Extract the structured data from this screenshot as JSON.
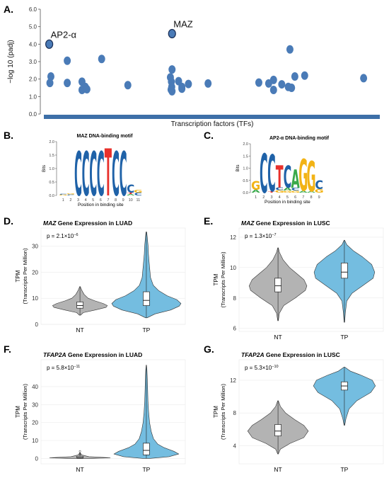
{
  "panels": {
    "A": "A.",
    "B": "B.",
    "C": "C.",
    "D": "D.",
    "E": "E.",
    "F": "F.",
    "G": "G."
  },
  "colors": {
    "scatter_point": "#4a7bb7",
    "baseline_bar": "#3d6fa8",
    "nt_violin": "#b3b3b3",
    "tp_violin": "#74bde0",
    "logo_C": "#1f62a8",
    "logo_T": "#e8302b",
    "logo_A": "#3aa94a",
    "logo_G": "#f2b315"
  },
  "chart_data": [
    {
      "id": "A",
      "type": "scatter",
      "title": "",
      "xlabel": "Transcription factors (TFs)",
      "ylabel": "−log 10 (padj)",
      "ylim": [
        0,
        6
      ],
      "yticks": [
        "0.0",
        "1.0",
        "2.0",
        "3.0",
        "4.0",
        "5.0",
        "6.0"
      ],
      "xlim": [
        0,
        100
      ],
      "annotations": [
        {
          "label": "AP2-α",
          "x": 1,
          "y": 4.0
        },
        {
          "label": "MAZ",
          "x": 38.5,
          "y": 4.6
        }
      ],
      "points": [
        {
          "x": 1,
          "y": 4.0,
          "highlight": true
        },
        {
          "x": 1.5,
          "y": 2.15
        },
        {
          "x": 1.2,
          "y": 1.78
        },
        {
          "x": 6.5,
          "y": 3.05
        },
        {
          "x": 6.5,
          "y": 1.78
        },
        {
          "x": 11,
          "y": 1.85
        },
        {
          "x": 11.5,
          "y": 1.45
        },
        {
          "x": 12,
          "y": 1.55
        },
        {
          "x": 11,
          "y": 1.38
        },
        {
          "x": 12.5,
          "y": 1.42
        },
        {
          "x": 17,
          "y": 3.15
        },
        {
          "x": 25,
          "y": 1.65
        },
        {
          "x": 38.5,
          "y": 4.6,
          "highlight": true
        },
        {
          "x": 38.5,
          "y": 2.55
        },
        {
          "x": 38,
          "y": 2.1
        },
        {
          "x": 38.3,
          "y": 1.85
        },
        {
          "x": 38.4,
          "y": 1.55
        },
        {
          "x": 38.2,
          "y": 1.4
        },
        {
          "x": 38.5,
          "y": 1.3
        },
        {
          "x": 40.5,
          "y": 1.88
        },
        {
          "x": 41.5,
          "y": 1.55
        },
        {
          "x": 41.5,
          "y": 1.45
        },
        {
          "x": 43.5,
          "y": 1.72
        },
        {
          "x": 49.5,
          "y": 1.75
        },
        {
          "x": 65,
          "y": 1.8
        },
        {
          "x": 68,
          "y": 1.75
        },
        {
          "x": 69.5,
          "y": 1.95
        },
        {
          "x": 69.5,
          "y": 1.38
        },
        {
          "x": 72,
          "y": 1.7
        },
        {
          "x": 74,
          "y": 1.55
        },
        {
          "x": 75,
          "y": 1.5
        },
        {
          "x": 74.5,
          "y": 3.7
        },
        {
          "x": 76,
          "y": 2.15
        },
        {
          "x": 79,
          "y": 2.2
        },
        {
          "x": 97,
          "y": 2.05
        }
      ]
    },
    {
      "id": "B",
      "type": "sequence-logo",
      "title": "MAZ DNA-binding motif",
      "xlabel": "Position in binding site",
      "ylabel": "Bits",
      "ylim": [
        0,
        2
      ],
      "yticks": [
        "0.0",
        "0.5",
        "1.0",
        "1.5",
        "2.0"
      ],
      "positions": [
        "1",
        "2",
        "3",
        "4",
        "5",
        "6",
        "7",
        "8",
        "9",
        "10",
        "11"
      ],
      "stacks": [
        {
          "pos": 1,
          "letters": [
            {
              "l": "C",
              "h": 0.04
            },
            {
              "l": "G",
              "h": 0.03
            }
          ]
        },
        {
          "pos": 2,
          "letters": [
            {
              "l": "C",
              "h": 0.04
            },
            {
              "l": "G",
              "h": 0.04
            }
          ]
        },
        {
          "pos": 3,
          "letters": [
            {
              "l": "C",
              "h": 1.65
            }
          ]
        },
        {
          "pos": 4,
          "letters": [
            {
              "l": "C",
              "h": 1.65
            }
          ]
        },
        {
          "pos": 5,
          "letters": [
            {
              "l": "C",
              "h": 1.65
            }
          ]
        },
        {
          "pos": 6,
          "letters": [
            {
              "l": "C",
              "h": 1.65
            }
          ]
        },
        {
          "pos": 7,
          "letters": [
            {
              "l": "T",
              "h": 1.75
            }
          ]
        },
        {
          "pos": 8,
          "letters": [
            {
              "l": "C",
              "h": 1.65
            }
          ]
        },
        {
          "pos": 9,
          "letters": [
            {
              "l": "C",
              "h": 1.65
            }
          ]
        },
        {
          "pos": 10,
          "letters": [
            {
              "l": "C",
              "h": 0.3
            },
            {
              "l": "A",
              "h": 0.05
            },
            {
              "l": "T",
              "h": 0.05
            }
          ]
        },
        {
          "pos": 11,
          "letters": [
            {
              "l": "C",
              "h": 0.1
            },
            {
              "l": "G",
              "h": 0.1
            }
          ]
        }
      ]
    },
    {
      "id": "C",
      "type": "sequence-logo",
      "title": "AP2-α DNA-binding motif",
      "xlabel": "Position in binding site",
      "ylabel": "Bits",
      "ylim": [
        0,
        2
      ],
      "yticks": [
        "0.0",
        "0.5",
        "1.0",
        "1.5",
        "2.0"
      ],
      "positions": [
        "1",
        "2",
        "3",
        "4",
        "5",
        "6",
        "7",
        "8",
        "9"
      ],
      "stacks": [
        {
          "pos": 1,
          "letters": [
            {
              "l": "G",
              "h": 0.35
            },
            {
              "l": "A",
              "h": 0.12
            }
          ]
        },
        {
          "pos": 2,
          "letters": [
            {
              "l": "C",
              "h": 1.6
            }
          ]
        },
        {
          "pos": 3,
          "letters": [
            {
              "l": "C",
              "h": 1.5
            },
            {
              "l": "T",
              "h": 0.06
            }
          ]
        },
        {
          "pos": 4,
          "letters": [
            {
              "l": "T",
              "h": 0.9
            },
            {
              "l": "C",
              "h": 0.12
            },
            {
              "l": "G",
              "h": 0.1
            }
          ]
        },
        {
          "pos": 5,
          "letters": [
            {
              "l": "C",
              "h": 0.9
            },
            {
              "l": "A",
              "h": 0.12
            },
            {
              "l": "G",
              "h": 0.08
            }
          ]
        },
        {
          "pos": 6,
          "letters": [
            {
              "l": "A",
              "h": 0.75
            },
            {
              "l": "C",
              "h": 0.12
            },
            {
              "l": "G",
              "h": 0.08
            }
          ]
        },
        {
          "pos": 7,
          "letters": [
            {
              "l": "G",
              "h": 1.3
            },
            {
              "l": "A",
              "h": 0.08
            }
          ]
        },
        {
          "pos": 8,
          "letters": [
            {
              "l": "G",
              "h": 1.25
            },
            {
              "l": "A",
              "h": 0.06
            }
          ]
        },
        {
          "pos": 9,
          "letters": [
            {
              "l": "C",
              "h": 0.35
            },
            {
              "l": "G",
              "h": 0.15
            }
          ]
        }
      ]
    },
    {
      "id": "D",
      "type": "violin",
      "title_gene": "MAZ",
      "title_rest": " Gene Expression in LUAD",
      "pvalue_prefix": "p = 2.1×10",
      "pvalue_exp": "−6",
      "ylabel": "TPM",
      "ylabel2": "(Transcripts Per Million)",
      "ylim": [
        0,
        37
      ],
      "yticks": [
        0,
        10,
        20,
        30
      ],
      "categories": [
        "NT",
        "TP"
      ],
      "groups": [
        {
          "name": "NT",
          "min": 3.5,
          "q1": 6.2,
          "median": 7.2,
          "q3": 8.6,
          "max": 14.5,
          "max_half_width": 0.38,
          "shape": [
            [
              3.5,
              0.02
            ],
            [
              4.5,
              0.12
            ],
            [
              5.5,
              0.55
            ],
            [
              6.5,
              0.95
            ],
            [
              7.2,
              1.0
            ],
            [
              8,
              0.85
            ],
            [
              9,
              0.55
            ],
            [
              10,
              0.3
            ],
            [
              11.5,
              0.15
            ],
            [
              13,
              0.07
            ],
            [
              14.5,
              0.01
            ]
          ]
        },
        {
          "name": "TP",
          "min": 2.5,
          "q1": 7.2,
          "median": 9.2,
          "q3": 12.5,
          "max": 35.5,
          "max_half_width": 0.48,
          "shape": [
            [
              2.5,
              0.02
            ],
            [
              4,
              0.25
            ],
            [
              5.5,
              0.7
            ],
            [
              7,
              0.95
            ],
            [
              8,
              1.0
            ],
            [
              9.5,
              0.88
            ],
            [
              11,
              0.6
            ],
            [
              13,
              0.35
            ],
            [
              15,
              0.2
            ],
            [
              18,
              0.12
            ],
            [
              21,
              0.1
            ],
            [
              24,
              0.08
            ],
            [
              27,
              0.06
            ],
            [
              30,
              0.05
            ],
            [
              33,
              0.03
            ],
            [
              35.5,
              0.01
            ]
          ]
        }
      ]
    },
    {
      "id": "E",
      "type": "violin",
      "title_gene": "MAZ",
      "title_rest": " Gene Expression in LUSC",
      "pvalue_prefix": "p = 1.3×10",
      "pvalue_exp": "−7",
      "ylabel": "TPM",
      "ylabel2": "(Transcripts Per Million)",
      "ylim": [
        5.8,
        12.6
      ],
      "yticks": [
        6,
        8,
        10,
        12
      ],
      "categories": [
        "NT",
        "TP"
      ],
      "groups": [
        {
          "name": "NT",
          "min": 6.5,
          "q1": 8.4,
          "median": 8.8,
          "q3": 9.3,
          "max": 11.3,
          "max_half_width": 0.4,
          "shape": [
            [
              6.5,
              0.01
            ],
            [
              7,
              0.05
            ],
            [
              7.5,
              0.2
            ],
            [
              8,
              0.6
            ],
            [
              8.5,
              0.95
            ],
            [
              8.8,
              1.0
            ],
            [
              9.2,
              0.9
            ],
            [
              9.6,
              0.65
            ],
            [
              10,
              0.4
            ],
            [
              10.5,
              0.18
            ],
            [
              11,
              0.05
            ],
            [
              11.3,
              0.01
            ]
          ]
        },
        {
          "name": "TP",
          "min": 6.4,
          "q1": 9.3,
          "median": 9.7,
          "q3": 10.3,
          "max": 11.8,
          "max_half_width": 0.42,
          "shape": [
            [
              6.4,
              0.01
            ],
            [
              7,
              0.03
            ],
            [
              7.8,
              0.08
            ],
            [
              8.3,
              0.25
            ],
            [
              8.8,
              0.6
            ],
            [
              9.3,
              0.95
            ],
            [
              9.7,
              1.0
            ],
            [
              10.2,
              0.9
            ],
            [
              10.7,
              0.6
            ],
            [
              11.1,
              0.3
            ],
            [
              11.5,
              0.08
            ],
            [
              11.8,
              0.01
            ]
          ]
        }
      ]
    },
    {
      "id": "F",
      "type": "violin",
      "title_gene": "TFAP2A",
      "title_rest": " Gene Expression in LUAD",
      "pvalue_prefix": "p = 5.8×10",
      "pvalue_exp": "−11",
      "ylabel": "TPM",
      "ylabel2": "(Transcripts Per Million)",
      "ylim": [
        -3,
        55
      ],
      "yticks": [
        0,
        10,
        20,
        30,
        40
      ],
      "categories": [
        "NT",
        "TP"
      ],
      "groups": [
        {
          "name": "NT",
          "min": 0,
          "q1": 0.2,
          "median": 0.5,
          "q3": 1.2,
          "max": 3.2,
          "max_half_width": 0.42,
          "outliers": [
            4.0,
            2.2
          ],
          "flat": true,
          "shape": [
            [
              0,
              0.4
            ],
            [
              0.4,
              1.0
            ],
            [
              1,
              0.3
            ],
            [
              2,
              0.05
            ],
            [
              3.2,
              0.01
            ]
          ]
        },
        {
          "name": "TP",
          "min": 0,
          "q1": 2.0,
          "median": 4.5,
          "q3": 8.5,
          "max": 52,
          "max_half_width": 0.45,
          "shape": [
            [
              0,
              0.1
            ],
            [
              1,
              0.7
            ],
            [
              2.5,
              1.0
            ],
            [
              4,
              0.85
            ],
            [
              6,
              0.55
            ],
            [
              8,
              0.35
            ],
            [
              11,
              0.22
            ],
            [
              15,
              0.15
            ],
            [
              20,
              0.1
            ],
            [
              26,
              0.07
            ],
            [
              32,
              0.05
            ],
            [
              38,
              0.04
            ],
            [
              44,
              0.03
            ],
            [
              49,
              0.02
            ],
            [
              52,
              0.005
            ]
          ]
        }
      ]
    },
    {
      "id": "G",
      "type": "violin",
      "title_gene": "TFAP2A",
      "title_rest": " Gene Expression in LUSC",
      "pvalue_prefix": "p = 5.3×10",
      "pvalue_exp": "−10",
      "ylabel": "TPM",
      "ylabel2": "(Transcripts Per Million)",
      "ylim": [
        1.8,
        14.5
      ],
      "yticks": [
        4,
        8,
        12
      ],
      "categories": [
        "NT",
        "TP"
      ],
      "groups": [
        {
          "name": "NT",
          "min": 3.0,
          "q1": 5.2,
          "median": 5.8,
          "q3": 6.6,
          "max": 9.5,
          "max_half_width": 0.42,
          "shape": [
            [
              3,
              0.01
            ],
            [
              3.6,
              0.08
            ],
            [
              4.3,
              0.4
            ],
            [
              5,
              0.85
            ],
            [
              5.8,
              1.0
            ],
            [
              6.5,
              0.85
            ],
            [
              7.2,
              0.55
            ],
            [
              8,
              0.25
            ],
            [
              8.8,
              0.08
            ],
            [
              9.5,
              0.01
            ]
          ]
        },
        {
          "name": "TP",
          "min": 6.5,
          "q1": 10.8,
          "median": 11.3,
          "q3": 11.8,
          "max": 13.6,
          "max_half_width": 0.43,
          "shape": [
            [
              6.5,
              0.01
            ],
            [
              7.3,
              0.05
            ],
            [
              8.5,
              0.15
            ],
            [
              9.5,
              0.4
            ],
            [
              10.5,
              0.85
            ],
            [
              11.3,
              1.0
            ],
            [
              12,
              0.9
            ],
            [
              12.6,
              0.55
            ],
            [
              13.1,
              0.2
            ],
            [
              13.6,
              0.01
            ]
          ]
        }
      ]
    }
  ]
}
